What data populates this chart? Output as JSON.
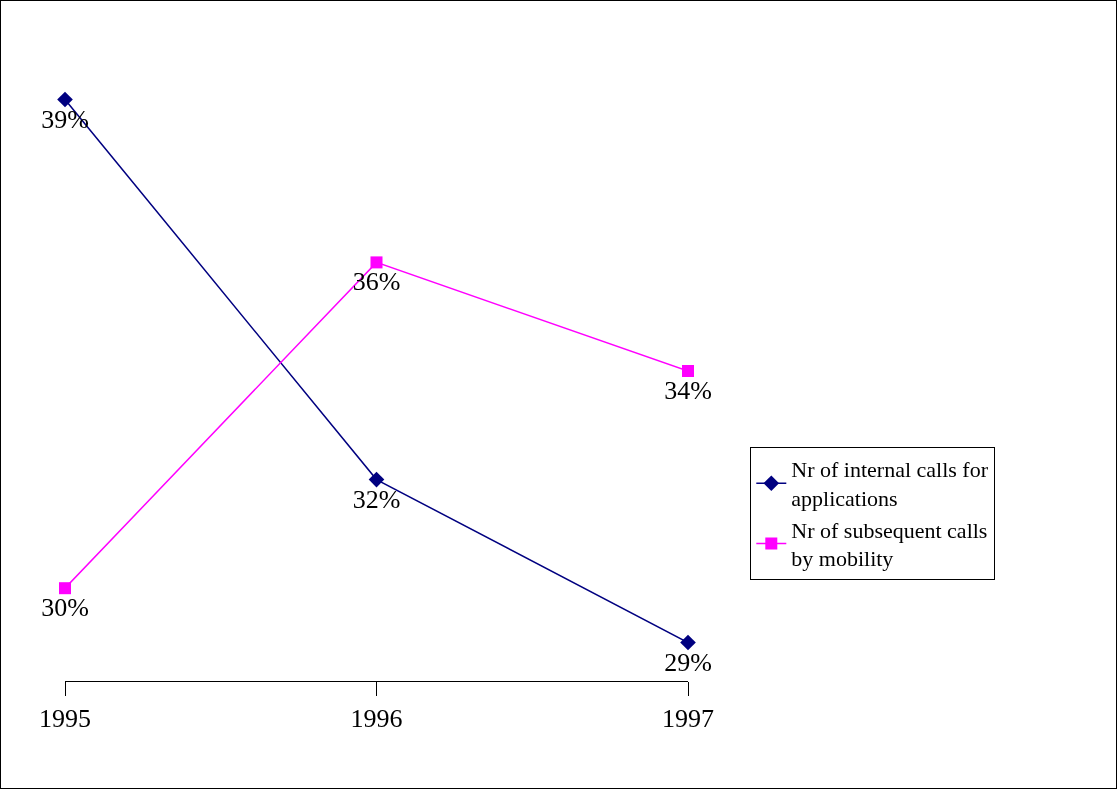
{
  "chart_data": {
    "type": "line",
    "categories": [
      "1995",
      "1996",
      "1997"
    ],
    "series": [
      {
        "name": "Nr of internal calls for applications",
        "color": "#000080",
        "marker": "diamond",
        "values": [
          39,
          32,
          29
        ],
        "value_labels": [
          "39%",
          "32%",
          "29%"
        ]
      },
      {
        "name": "Nr of subsequent calls by mobility",
        "color": "#ff00ff",
        "marker": "square",
        "values": [
          30,
          36,
          34
        ],
        "value_labels": [
          "30%",
          "36%",
          "34%"
        ]
      }
    ],
    "legend": "right",
    "grid": false
  }
}
